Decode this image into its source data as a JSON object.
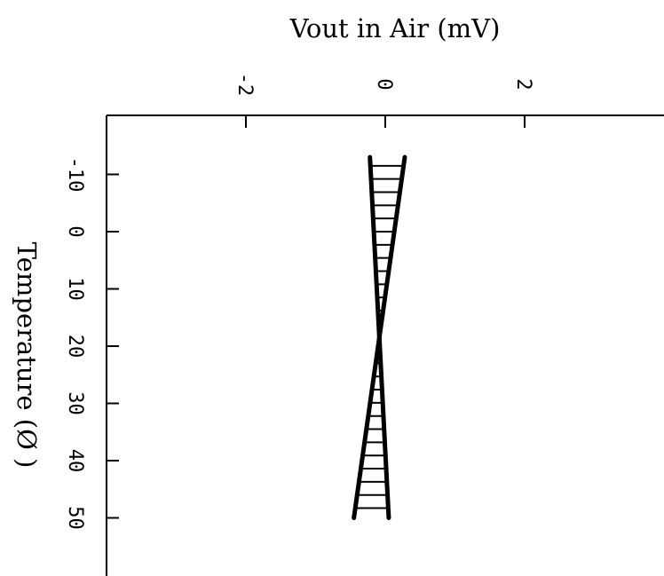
{
  "chart_data": {
    "type": "line",
    "title": "",
    "xlabel": "Temperature (Ø )",
    "ylabel": "Vout in Air (mV)",
    "x_ticks": [
      "-10",
      "0",
      "10",
      "20",
      "30",
      "40",
      "50"
    ],
    "y_ticks": [
      "-2",
      "0",
      "2"
    ],
    "xlim": [
      -17,
      58
    ],
    "ylim": [
      -4.1,
      4.2
    ],
    "grid": false,
    "legend": "none",
    "orientation": "rotated 90 degrees clockwise (temperature runs down the page, voltage runs left to right)",
    "series": [
      {
        "x": [
          -13,
          50
        ],
        "y": [
          0.28,
          -0.45
        ],
        "hatched_band": true
      },
      {
        "x": [
          -13,
          50
        ],
        "y": [
          -0.22,
          0.05
        ],
        "hatched_band": true
      }
    ],
    "colors": {
      "line": "#000000",
      "background": "#ffffff"
    }
  }
}
